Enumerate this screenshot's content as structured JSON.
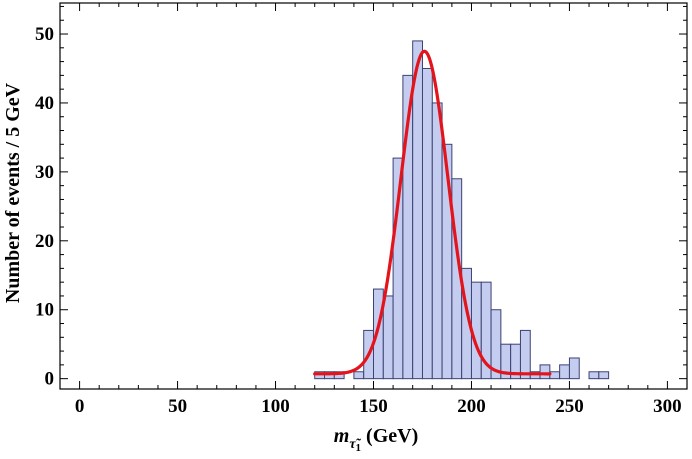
{
  "chart_data": {
    "type": "bar",
    "subtype": "histogram",
    "bin_width": 5,
    "bins": [
      {
        "x0": 120,
        "x1": 125,
        "count": 1
      },
      {
        "x0": 125,
        "x1": 130,
        "count": 1
      },
      {
        "x0": 130,
        "x1": 135,
        "count": 1
      },
      {
        "x0": 135,
        "x1": 140,
        "count": 0
      },
      {
        "x0": 140,
        "x1": 145,
        "count": 1
      },
      {
        "x0": 145,
        "x1": 150,
        "count": 7
      },
      {
        "x0": 150,
        "x1": 155,
        "count": 13
      },
      {
        "x0": 155,
        "x1": 160,
        "count": 12
      },
      {
        "x0": 160,
        "x1": 165,
        "count": 32
      },
      {
        "x0": 165,
        "x1": 170,
        "count": 44
      },
      {
        "x0": 170,
        "x1": 175,
        "count": 49
      },
      {
        "x0": 175,
        "x1": 180,
        "count": 45
      },
      {
        "x0": 180,
        "x1": 185,
        "count": 40
      },
      {
        "x0": 185,
        "x1": 190,
        "count": 34
      },
      {
        "x0": 190,
        "x1": 195,
        "count": 29
      },
      {
        "x0": 195,
        "x1": 200,
        "count": 16
      },
      {
        "x0": 200,
        "x1": 205,
        "count": 14
      },
      {
        "x0": 205,
        "x1": 210,
        "count": 14
      },
      {
        "x0": 210,
        "x1": 215,
        "count": 10
      },
      {
        "x0": 215,
        "x1": 220,
        "count": 5
      },
      {
        "x0": 220,
        "x1": 225,
        "count": 5
      },
      {
        "x0": 225,
        "x1": 230,
        "count": 7
      },
      {
        "x0": 230,
        "x1": 235,
        "count": 1
      },
      {
        "x0": 235,
        "x1": 240,
        "count": 2
      },
      {
        "x0": 240,
        "x1": 245,
        "count": 1
      },
      {
        "x0": 245,
        "x1": 250,
        "count": 2
      },
      {
        "x0": 250,
        "x1": 255,
        "count": 3
      },
      {
        "x0": 255,
        "x1": 260,
        "count": 0
      },
      {
        "x0": 260,
        "x1": 265,
        "count": 1
      },
      {
        "x0": 265,
        "x1": 270,
        "count": 1
      }
    ],
    "fit": {
      "type": "gaussian",
      "mean": 176,
      "sigma": 12,
      "amplitude": 46.8,
      "baseline": 0.7,
      "x_range": [
        120,
        240
      ],
      "color": "#e4141c"
    },
    "bar_color": "#c4cdf0",
    "bar_edge_color": "#3c4272",
    "xlim": [
      -10,
      310
    ],
    "ylim": [
      -1.5,
      54.5
    ],
    "xticks": [
      0,
      50,
      100,
      150,
      200,
      250,
      300
    ],
    "yticks": [
      0,
      10,
      20,
      30,
      40,
      50
    ],
    "xlabel_var": "m",
    "xlabel_sub": "τ̃",
    "xlabel_sub_index": "1",
    "xlabel_unit": "(GeV)",
    "ylabel": "Number of events / 5 GeV",
    "grid": false
  }
}
